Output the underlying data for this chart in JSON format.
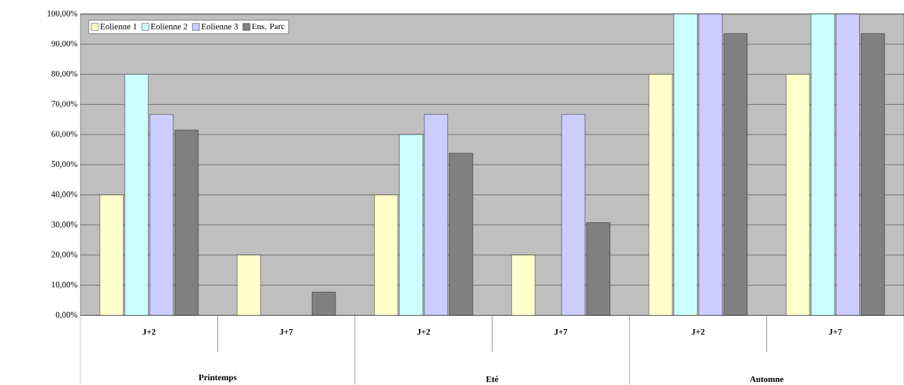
{
  "chart_data": {
    "type": "bar",
    "categories": [
      "J+2",
      "J+7",
      "J+2",
      "J+7",
      "J+2",
      "J+7"
    ],
    "series": [
      {
        "name": "Eolienne 1",
        "color": "#ffffcc",
        "values": [
          40,
          20,
          40,
          20,
          80,
          80
        ]
      },
      {
        "name": "Eolienne 2",
        "color": "#ccffff",
        "values": [
          80,
          null,
          60,
          null,
          100,
          100
        ]
      },
      {
        "name": "Eolienne 3",
        "color": "#ccccff",
        "values": [
          66.7,
          null,
          66.7,
          66.7,
          100,
          100
        ]
      },
      {
        "name": "Ens. Parc",
        "color": "#808080",
        "values": [
          61.5,
          7.7,
          53.8,
          30.8,
          93.5,
          93.5
        ]
      }
    ],
    "ylim": [
      0,
      100
    ],
    "yticks": [
      {
        "value": 0,
        "label": "0,00%"
      },
      {
        "value": 10,
        "label": "10,00%"
      },
      {
        "value": 20,
        "label": "20,00%"
      },
      {
        "value": 30,
        "label": "30,00%"
      },
      {
        "value": 40,
        "label": "40,00%"
      },
      {
        "value": 50,
        "label": "50,00%"
      },
      {
        "value": 60,
        "label": "60,00%"
      },
      {
        "value": 70,
        "label": "70,00%"
      },
      {
        "value": 80,
        "label": "80,00%"
      },
      {
        "value": 90,
        "label": "90,00%"
      },
      {
        "value": 100,
        "label": "100,00%"
      }
    ],
    "grid": "y",
    "legend": "top left",
    "annotations": [
      "Printemps",
      "Eté",
      "Automne"
    ]
  }
}
